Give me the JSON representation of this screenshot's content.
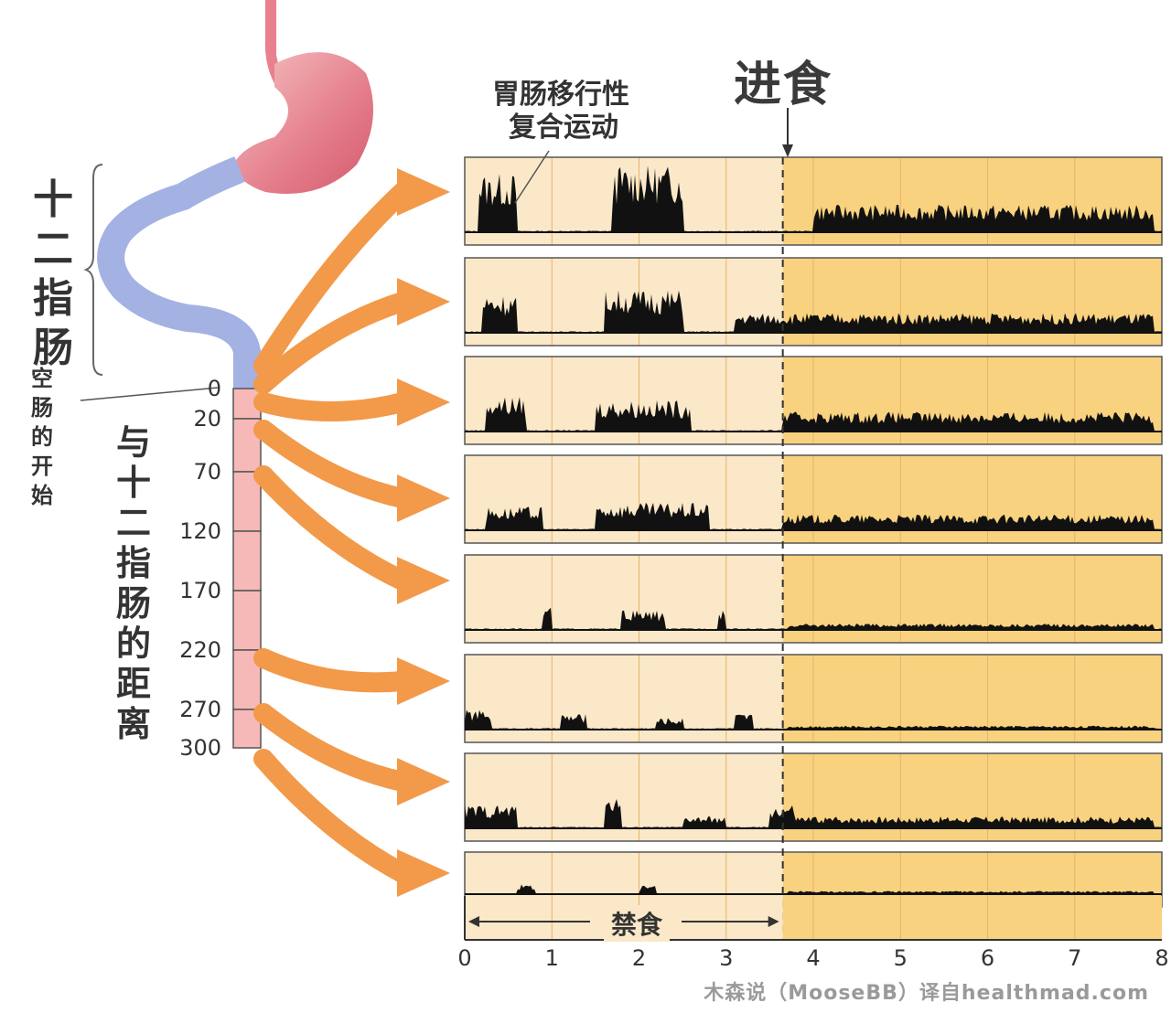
{
  "title_feeding": "进食",
  "mmc_label_line1": "胃肠移行性",
  "mmc_label_line2": "复合运动",
  "duodenum_label": [
    "十",
    "二",
    "指",
    "肠"
  ],
  "jejunum_start_label": [
    "空",
    "肠",
    "的",
    "开",
    "始"
  ],
  "distance_label": [
    "与",
    "十",
    "二",
    "指",
    "肠",
    "的",
    "距",
    "离"
  ],
  "distance_ticks": [
    "0",
    "20",
    "70",
    "120",
    "170",
    "220",
    "270",
    "300"
  ],
  "fasting_label": "禁食",
  "watermark": "木森说（MooseBB）译自healthmad.com",
  "colors": {
    "stomach": "#e8818d",
    "duodenum": "#a3b2e3",
    "jejunum": "#f7b8b8",
    "arrow": "#f29a4a",
    "fasting_bg": "#fbe8c8",
    "fed_bg": "#f9d27f",
    "trace": "#111111"
  },
  "chart_data": {
    "type": "line",
    "x_ticks": [
      "0",
      "1",
      "2",
      "3",
      "4",
      "5",
      "6",
      "7",
      "8"
    ],
    "xlim": [
      0,
      8
    ],
    "feeding_time": 3.65,
    "fasting_range": [
      0,
      3.65
    ],
    "series": [
      {
        "bursts": [
          [
            0.15,
            0.6,
            0.75
          ],
          [
            1.7,
            2.5,
            0.85
          ],
          [
            4.0,
            7.9,
            0.35
          ]
        ]
      },
      {
        "bursts": [
          [
            0.2,
            0.6,
            0.5
          ],
          [
            1.6,
            2.5,
            0.55
          ],
          [
            3.1,
            7.9,
            0.25
          ]
        ]
      },
      {
        "bursts": [
          [
            0.25,
            0.7,
            0.45
          ],
          [
            1.5,
            2.6,
            0.4
          ],
          [
            3.65,
            7.9,
            0.25
          ]
        ]
      },
      {
        "bursts": [
          [
            0.25,
            0.9,
            0.3
          ],
          [
            1.5,
            2.8,
            0.35
          ],
          [
            3.65,
            7.9,
            0.2
          ]
        ]
      },
      {
        "bursts": [
          [
            0.9,
            1.0,
            0.3
          ],
          [
            1.8,
            2.3,
            0.25
          ],
          [
            2.9,
            3.0,
            0.3
          ],
          [
            3.7,
            7.9,
            0.08
          ]
        ]
      },
      {
        "bursts": [
          [
            0.0,
            0.3,
            0.25
          ],
          [
            1.1,
            1.4,
            0.2
          ],
          [
            2.2,
            2.5,
            0.15
          ],
          [
            3.1,
            3.3,
            0.2
          ],
          [
            3.7,
            7.9,
            0.05
          ]
        ]
      },
      {
        "bursts": [
          [
            0.0,
            0.6,
            0.3
          ],
          [
            1.6,
            1.8,
            0.4
          ],
          [
            2.5,
            3.0,
            0.15
          ],
          [
            3.5,
            3.8,
            0.3
          ],
          [
            3.8,
            7.9,
            0.15
          ]
        ]
      },
      {
        "bursts": [
          [
            0.6,
            0.8,
            0.25
          ],
          [
            2.0,
            2.2,
            0.25
          ],
          [
            3.7,
            7.9,
            0.08
          ]
        ]
      }
    ]
  }
}
